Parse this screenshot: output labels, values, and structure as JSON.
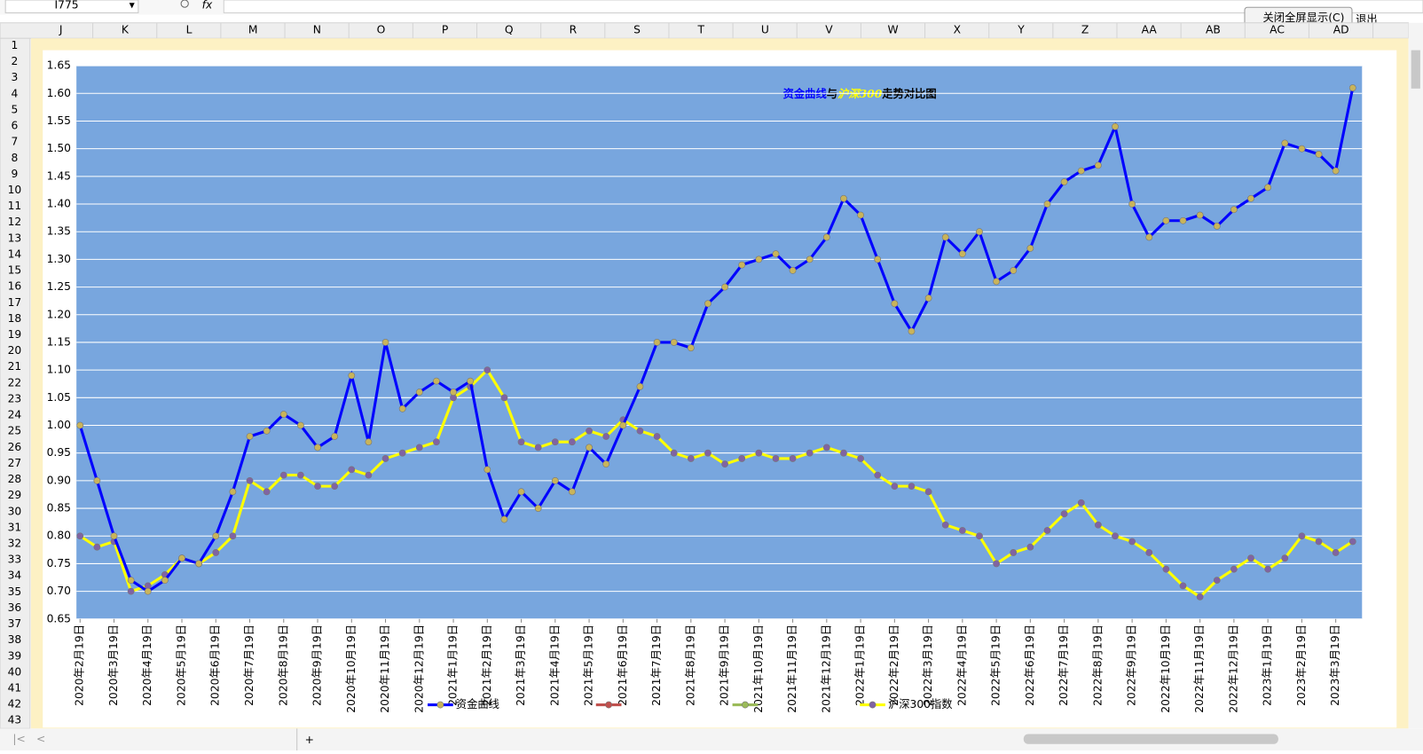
{
  "name_box": "I775",
  "formula_label": "fx",
  "buttons": [
    "关闭全屏显示(C)",
    "退出"
  ],
  "columns": [
    "J",
    "K",
    "L",
    "M",
    "N",
    "O",
    "P",
    "Q",
    "R",
    "S",
    "T",
    "U",
    "V",
    "W",
    "X",
    "Y",
    "Z",
    "AA",
    "AB",
    "AC",
    "AD"
  ],
  "rows": [
    1,
    2,
    3,
    4,
    5,
    6,
    7,
    8,
    9,
    10,
    11,
    12,
    13,
    14,
    15,
    16,
    17,
    18,
    19,
    20,
    21,
    22,
    23,
    24,
    25,
    26,
    27,
    28,
    29,
    30,
    31,
    32,
    33,
    34,
    35,
    36,
    37,
    38,
    39,
    40,
    41,
    42,
    43
  ],
  "chart_data": {
    "type": "line",
    "title": [
      {
        "text": "资金曲线",
        "color": "#0000ff"
      },
      {
        "text": "与",
        "color": "#000000"
      },
      {
        "text": "沪深300",
        "color": "#ffff00"
      },
      {
        "text": "走势对比图",
        "color": "#000000"
      }
    ],
    "categories": [
      "2020年2月19日",
      null,
      "2020年3月19日",
      null,
      "2020年4月19日",
      null,
      "2020年5月19日",
      null,
      "2020年6月19日",
      null,
      "2020年7月19日",
      null,
      "2020年8月19日",
      null,
      "2020年9月19日",
      null,
      "2020年10月19日",
      null,
      "2020年11月19日",
      null,
      "2020年12月19日",
      null,
      "2021年1月19日",
      null,
      "2021年2月19日",
      null,
      "2021年3月19日",
      null,
      "2021年4月19日",
      null,
      "2021年5月19日",
      null,
      "2021年6月19日",
      null,
      "2021年7月19日",
      null,
      "2021年8月19日",
      null,
      "2021年9月19日",
      null,
      "2021年10月19日",
      null,
      "2021年11月19日",
      null,
      "2021年12月19日",
      null,
      "2022年1月19日",
      null,
      "2022年2月19日",
      null,
      "2022年3月19日",
      null,
      "2022年4月19日",
      null,
      "2022年5月19日",
      null,
      "2022年6月19日",
      null,
      "2022年7月19日",
      null,
      "2022年8月19日",
      null,
      "2022年9月19日",
      null,
      "2022年10月19日",
      null,
      "2022年11月19日",
      null,
      "2022年12月19日",
      null,
      "2023年1月19日",
      null,
      "2023年2月19日",
      null,
      "2023年3月19日",
      null
    ],
    "series": [
      {
        "name": "资金曲线",
        "color": "#0000ff",
        "marker_color": "#c9b45a",
        "values": [
          1.0,
          0.9,
          0.8,
          0.72,
          0.7,
          0.72,
          0.76,
          0.75,
          0.8,
          0.88,
          0.98,
          0.99,
          1.02,
          1.0,
          0.96,
          0.98,
          1.09,
          0.97,
          1.15,
          1.03,
          1.06,
          1.08,
          1.06,
          1.08,
          0.92,
          0.83,
          0.88,
          0.85,
          0.9,
          0.88,
          0.96,
          0.93,
          1.0,
          1.07,
          1.15,
          1.15,
          1.14,
          1.22,
          1.25,
          1.29,
          1.3,
          1.31,
          1.28,
          1.3,
          1.34,
          1.41,
          1.38,
          1.3,
          1.22,
          1.17,
          1.23,
          1.34,
          1.31,
          1.35,
          1.26,
          1.28,
          1.32,
          1.4,
          1.44,
          1.46,
          1.47,
          1.54,
          1.4,
          1.34,
          1.37,
          1.37,
          1.38,
          1.36,
          1.39,
          1.41,
          1.43,
          1.51,
          1.5,
          1.49,
          1.46,
          1.61
        ]
      },
      {
        "color": "#c0504d",
        "marker_color": "#c0504d"
      },
      {
        "color": "#9bbb59",
        "marker_color": "#9bbb59"
      },
      {
        "name": "沪深300指数",
        "color": "#ffff00",
        "marker_color": "#8064a2",
        "values": [
          0.8,
          0.78,
          0.79,
          0.7,
          0.71,
          0.73,
          0.76,
          0.75,
          0.77,
          0.8,
          0.9,
          0.88,
          0.91,
          0.91,
          0.89,
          0.89,
          0.92,
          0.91,
          0.94,
          0.95,
          0.96,
          0.97,
          1.05,
          1.07,
          1.1,
          1.05,
          0.97,
          0.96,
          0.97,
          0.97,
          0.99,
          0.98,
          1.01,
          0.99,
          0.98,
          0.95,
          0.94,
          0.95,
          0.93,
          0.94,
          0.95,
          0.94,
          0.94,
          0.95,
          0.96,
          0.95,
          0.94,
          0.91,
          0.89,
          0.89,
          0.88,
          0.82,
          0.81,
          0.8,
          0.75,
          0.77,
          0.78,
          0.81,
          0.84,
          0.86,
          0.82,
          0.8,
          0.79,
          0.77,
          0.74,
          0.71,
          0.69,
          0.72,
          0.74,
          0.76,
          0.74,
          0.76,
          0.8,
          0.79,
          0.77,
          0.79
        ]
      }
    ],
    "ylim": [
      0.65,
      1.65
    ],
    "yticks": [
      0.65,
      {
        "value": 0.7,
        "label": "0.70"
      },
      0.75,
      {
        "value": 0.8,
        "label": "0.80"
      },
      0.85,
      {
        "value": 0.9,
        "label": "0.90"
      },
      0.95,
      {
        "value": 1,
        "label": "1.00"
      },
      1.05,
      {
        "value": 1.1,
        "label": "1.10"
      },
      1.15,
      {
        "value": 1.2,
        "label": "1.20"
      },
      1.25,
      {
        "value": 1.3,
        "label": "1.30"
      },
      1.35,
      {
        "value": 1.4,
        "label": "1.40"
      },
      1.45,
      {
        "value": 1.5,
        "label": "1.50"
      },
      1.55,
      {
        "value": 1.6,
        "label": "1.60"
      },
      1.65
    ],
    "grid": true,
    "legend": "bottom",
    "plot_color": "#78a6de"
  }
}
